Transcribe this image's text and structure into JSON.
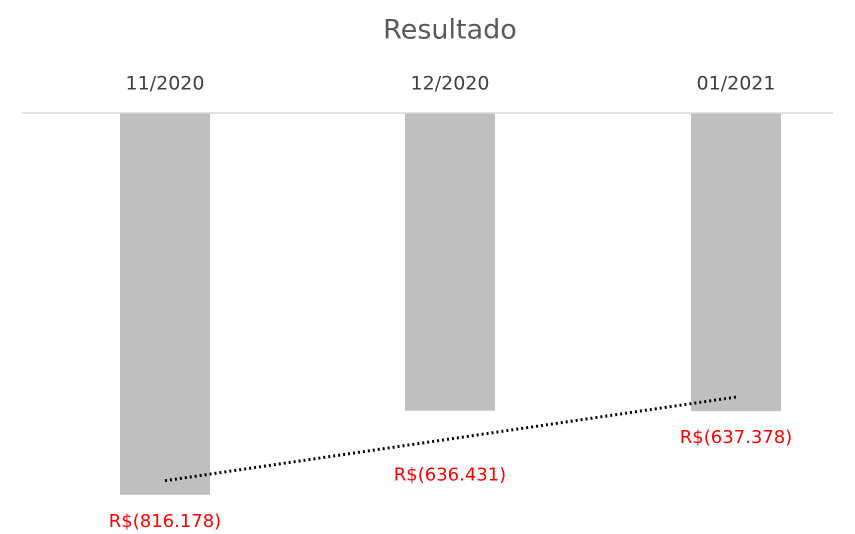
{
  "chart_data": {
    "type": "bar",
    "title": "Resultado",
    "categories": [
      "11/2020",
      "12/2020",
      "01/2021"
    ],
    "values": [
      -816178,
      -636431,
      -637378
    ],
    "value_labels": [
      "R$(816.178)",
      "R$(636.431)",
      "R$(637.378)"
    ],
    "color": "#bfbfbf",
    "label_color": "#ff0000",
    "ylim": [
      0,
      -900000
    ],
    "trendline": "linear",
    "grid": false
  }
}
